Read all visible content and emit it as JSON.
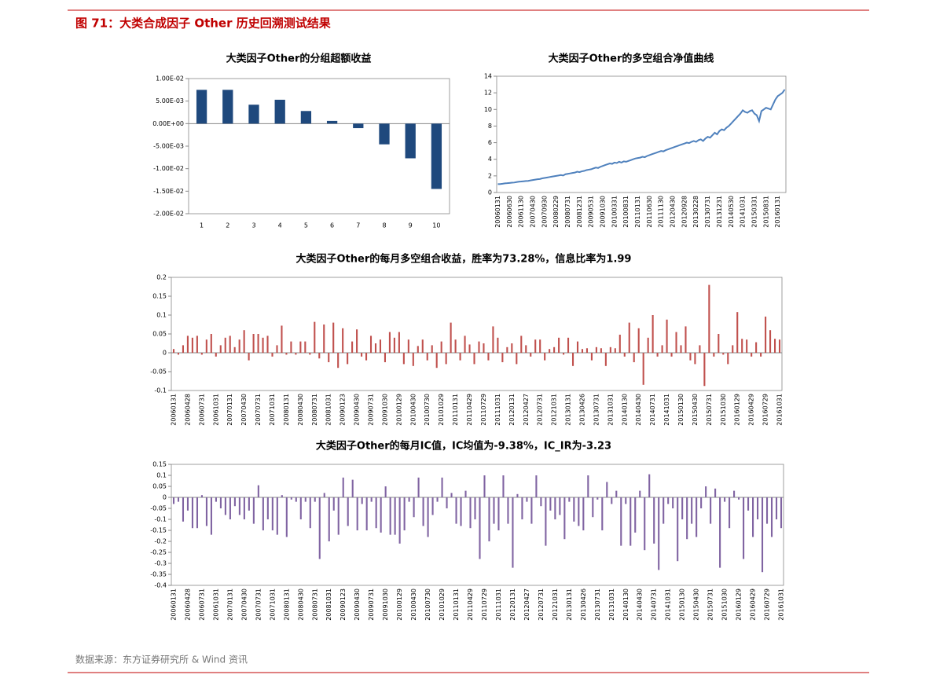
{
  "header": {
    "title": "图 71：大类合成因子 Other 历史回溯测试结果"
  },
  "source": "数据来源：东方证券研究所 & Wind 资讯",
  "chart_data": [
    {
      "type": "bar",
      "title": "大类因子Other的分组超额收益",
      "color": "#1f497d",
      "categories": [
        "1",
        "2",
        "3",
        "4",
        "5",
        "6",
        "7",
        "8",
        "9",
        "10"
      ],
      "values": [
        0.0075,
        0.0075,
        0.0042,
        0.0053,
        0.0028,
        0.0006,
        -0.001,
        -0.0046,
        -0.0077,
        -0.0145
      ],
      "ylim": [
        -0.02,
        0.01
      ],
      "yticks": [
        {
          "value": 0.01,
          "label": "1.00E-02"
        },
        {
          "value": 0.005,
          "label": "5.00E-03"
        },
        {
          "value": 0,
          "label": "0.00E+00"
        },
        {
          "value": -0.005,
          "label": "-5.00E-03"
        },
        {
          "value": -0.01,
          "label": "-1.00E-02"
        },
        {
          "value": -0.015,
          "label": "-1.50E-02"
        },
        {
          "value": -0.02,
          "label": "-2.00E-02"
        }
      ]
    },
    {
      "type": "line",
      "title": "大类因子Other的多空组合净值曲线",
      "color": "#4f81bd",
      "categories": [
        "20060131",
        null,
        null,
        null,
        null,
        "20060630",
        null,
        null,
        null,
        null,
        "20061130",
        null,
        null,
        null,
        null,
        "20070430",
        null,
        null,
        null,
        null,
        "20070930",
        null,
        null,
        null,
        null,
        "20080229",
        null,
        null,
        null,
        null,
        "20080731",
        null,
        null,
        null,
        null,
        "20081231",
        null,
        null,
        null,
        null,
        "20090531",
        null,
        null,
        null,
        null,
        "20091030",
        null,
        null,
        null,
        null,
        "20100331",
        null,
        null,
        null,
        null,
        "20100831",
        null,
        null,
        null,
        null,
        "20110131",
        null,
        null,
        null,
        null,
        "20110630",
        null,
        null,
        null,
        null,
        "20111130",
        null,
        null,
        null,
        null,
        "20120430",
        null,
        null,
        null,
        null,
        "20120928",
        null,
        null,
        null,
        null,
        "20130228",
        null,
        null,
        null,
        null,
        "20130731",
        null,
        null,
        null,
        null,
        "20131231",
        null,
        null,
        null,
        null,
        "20140530",
        null,
        null,
        null,
        null,
        "20141031",
        null,
        null,
        null,
        null,
        "20150331",
        null,
        null,
        null,
        null,
        "20150831",
        null,
        null,
        null,
        null,
        "20160131",
        null,
        null,
        null
      ],
      "values": [
        1.0,
        1.02,
        1.05,
        1.1,
        1.12,
        1.15,
        1.18,
        1.2,
        1.25,
        1.3,
        1.32,
        1.35,
        1.38,
        1.4,
        1.45,
        1.5,
        1.55,
        1.6,
        1.62,
        1.7,
        1.75,
        1.8,
        1.85,
        1.9,
        1.95,
        2.0,
        2.05,
        2.1,
        2.05,
        2.2,
        2.25,
        2.3,
        2.35,
        2.4,
        2.5,
        2.45,
        2.55,
        2.6,
        2.7,
        2.75,
        2.8,
        2.9,
        3.0,
        2.95,
        3.1,
        3.2,
        3.3,
        3.4,
        3.5,
        3.45,
        3.6,
        3.55,
        3.7,
        3.6,
        3.75,
        3.7,
        3.8,
        3.9,
        4.0,
        4.1,
        4.15,
        4.2,
        4.3,
        4.25,
        4.4,
        4.5,
        4.6,
        4.7,
        4.8,
        4.9,
        5.0,
        4.95,
        5.1,
        5.2,
        5.3,
        5.4,
        5.5,
        5.6,
        5.7,
        5.8,
        5.9,
        6.0,
        5.95,
        6.1,
        6.2,
        6.1,
        6.3,
        6.4,
        6.2,
        6.5,
        6.7,
        6.6,
        6.9,
        7.2,
        7.0,
        7.4,
        7.6,
        7.5,
        7.8,
        8.0,
        8.3,
        8.6,
        8.9,
        9.2,
        9.5,
        9.9,
        9.7,
        9.6,
        9.8,
        9.9,
        9.5,
        9.3,
        8.6,
        9.8,
        10.0,
        10.2,
        10.1,
        10.0,
        10.6,
        11.2,
        11.6,
        11.8,
        12.0,
        12.4
      ],
      "ylim": [
        0,
        14
      ],
      "yticks": [
        0,
        2,
        4,
        6,
        8,
        10,
        12,
        14
      ]
    },
    {
      "type": "bar",
      "title": "大类因子Other的每月多空组合收益，胜率为73.28%，信息比率为1.99",
      "color": "#c0504d",
      "categories": [
        "20060131",
        null,
        null,
        "20060428",
        null,
        null,
        "20060731",
        null,
        null,
        "20061031",
        null,
        null,
        "20070131",
        null,
        null,
        "20070430",
        null,
        null,
        "20070731",
        null,
        null,
        "20071031",
        null,
        null,
        "20080131",
        null,
        null,
        "20080430",
        null,
        null,
        "20080731",
        null,
        null,
        "20081031",
        null,
        null,
        "20090123",
        null,
        null,
        "20090430",
        null,
        null,
        "20090731",
        null,
        null,
        "20091030",
        null,
        null,
        "20100129",
        null,
        null,
        "20100430",
        null,
        null,
        "20100730",
        null,
        null,
        "20101029",
        null,
        null,
        "20110131",
        null,
        null,
        "20110429",
        null,
        null,
        "20110729",
        null,
        null,
        "20111031",
        null,
        null,
        "20120131",
        null,
        null,
        "20120427",
        null,
        null,
        "20120731",
        null,
        null,
        "20121031",
        null,
        null,
        "20130131",
        null,
        null,
        "20130426",
        null,
        null,
        "20130731",
        null,
        null,
        "20131031",
        null,
        null,
        "20140130",
        null,
        null,
        "20140430",
        null,
        null,
        "20140731",
        null,
        null,
        "20141031",
        null,
        null,
        "20150130",
        null,
        null,
        "20150430",
        null,
        null,
        "20150731",
        null,
        null,
        "20151030",
        null,
        null,
        "20160129",
        null,
        null,
        "20160429",
        null,
        null,
        "20160729",
        null,
        null,
        "20161031"
      ],
      "values": [
        0.01,
        -0.005,
        0.02,
        0.045,
        0.04,
        0.045,
        -0.005,
        0.035,
        0.05,
        -0.01,
        0.02,
        0.04,
        0.045,
        0.015,
        0.035,
        0.06,
        -0.02,
        0.05,
        0.05,
        0.04,
        0.045,
        -0.01,
        0.02,
        0.072,
        -0.005,
        0.03,
        -0.005,
        0.03,
        0.03,
        -0.005,
        0.082,
        -0.015,
        0.075,
        -0.025,
        0.08,
        -0.04,
        0.065,
        -0.03,
        0.03,
        0.062,
        -0.01,
        -0.02,
        0.045,
        0.025,
        0.035,
        -0.025,
        0.055,
        0.04,
        0.055,
        -0.03,
        0.035,
        -0.035,
        0.018,
        0.035,
        -0.02,
        0.02,
        -0.04,
        0.03,
        -0.03,
        0.08,
        0.035,
        -0.02,
        0.045,
        0.022,
        -0.03,
        0.03,
        0.025,
        -0.02,
        0.07,
        0.04,
        -0.025,
        0.015,
        0.025,
        -0.03,
        0.045,
        0.02,
        -0.01,
        0.035,
        0.035,
        -0.02,
        0.01,
        0.015,
        0.04,
        -0.005,
        0.04,
        -0.035,
        0.03,
        0.01,
        0.012,
        -0.02,
        0.015,
        0.012,
        -0.035,
        0.015,
        0.012,
        0.048,
        -0.01,
        0.08,
        -0.025,
        0.065,
        -0.085,
        0.04,
        0.1,
        -0.01,
        0.02,
        0.088,
        -0.01,
        0.055,
        0.02,
        0.07,
        -0.02,
        -0.03,
        0.02,
        -0.088,
        0.18,
        -0.01,
        0.05,
        -0.005,
        -0.03,
        0.02,
        0.108,
        0.037,
        0.035,
        -0.01,
        0.028,
        -0.01,
        0.096,
        0.06,
        0.037,
        0.035
      ],
      "ylim": [
        -0.1,
        0.2
      ],
      "yticks": [
        0.2,
        0.15,
        0.1,
        0.05,
        0,
        -0.05,
        -0.1
      ]
    },
    {
      "type": "bar",
      "title": "大类因子Other的每月IC值，IC均值为-9.38%，IC_IR为-3.23",
      "color": "#8064a2",
      "categories": [
        "20060131",
        null,
        null,
        "20060428",
        null,
        null,
        "20060731",
        null,
        null,
        "20061031",
        null,
        null,
        "20070131",
        null,
        null,
        "20070430",
        null,
        null,
        "20070731",
        null,
        null,
        "20071031",
        null,
        null,
        "20080131",
        null,
        null,
        "20080430",
        null,
        null,
        "20080731",
        null,
        null,
        "20081031",
        null,
        null,
        "20090123",
        null,
        null,
        "20090430",
        null,
        null,
        "20090731",
        null,
        null,
        "20091030",
        null,
        null,
        "20100129",
        null,
        null,
        "20100430",
        null,
        null,
        "20100730",
        null,
        null,
        "20101029",
        null,
        null,
        "20110131",
        null,
        null,
        "20110429",
        null,
        null,
        "20110729",
        null,
        null,
        "20111031",
        null,
        null,
        "20120131",
        null,
        null,
        "20120427",
        null,
        null,
        "20120731",
        null,
        null,
        "20121031",
        null,
        null,
        "20130131",
        null,
        null,
        "20130426",
        null,
        null,
        "20130731",
        null,
        null,
        "20131031",
        null,
        null,
        "20140130",
        null,
        null,
        "20140430",
        null,
        null,
        "20140731",
        null,
        null,
        "20141031",
        null,
        null,
        "20150130",
        null,
        null,
        "20150430",
        null,
        null,
        "20150731",
        null,
        null,
        "20151030",
        null,
        null,
        "20160129",
        null,
        null,
        "20160429",
        null,
        null,
        "20160729",
        null,
        null,
        "20161031"
      ],
      "values": [
        -0.03,
        -0.02,
        -0.11,
        -0.06,
        -0.14,
        -0.14,
        0.01,
        -0.13,
        -0.17,
        -0.02,
        -0.05,
        -0.08,
        -0.1,
        -0.04,
        -0.08,
        -0.1,
        -0.06,
        -0.12,
        0.055,
        -0.15,
        -0.1,
        -0.15,
        -0.17,
        0.01,
        -0.18,
        -0.01,
        -0.02,
        -0.1,
        -0.02,
        -0.14,
        -0.02,
        -0.28,
        0.02,
        -0.2,
        -0.06,
        -0.17,
        0.09,
        -0.13,
        0.08,
        -0.15,
        -0.03,
        -0.15,
        -0.02,
        -0.14,
        -0.16,
        0.05,
        -0.17,
        -0.17,
        -0.21,
        -0.15,
        -0.02,
        -0.09,
        0.09,
        -0.13,
        -0.18,
        -0.08,
        -0.02,
        0.09,
        -0.05,
        0.02,
        -0.12,
        -0.13,
        0.03,
        -0.14,
        -0.1,
        -0.28,
        0.1,
        -0.2,
        -0.12,
        -0.15,
        0.1,
        -0.12,
        -0.32,
        0.015,
        -0.1,
        -0.02,
        -0.12,
        0.1,
        -0.04,
        -0.22,
        -0.06,
        -0.1,
        -0.08,
        -0.19,
        -0.02,
        -0.11,
        -0.13,
        -0.15,
        0.1,
        -0.09,
        -0.01,
        -0.15,
        0.07,
        -0.03,
        0.03,
        -0.22,
        -0.03,
        -0.22,
        -0.16,
        0.03,
        -0.24,
        0.105,
        -0.21,
        -0.33,
        -0.12,
        -0.03,
        -0.05,
        -0.29,
        -0.1,
        -0.19,
        -0.12,
        -0.18,
        -0.05,
        0.05,
        -0.12,
        0.04,
        -0.32,
        -0.02,
        -0.14,
        0.03,
        -0.01,
        -0.28,
        -0.06,
        -0.18,
        -0.1,
        -0.34,
        -0.12,
        -0.18,
        -0.1,
        -0.14
      ],
      "ylim": [
        -0.4,
        0.15
      ],
      "yticks": [
        0.15,
        0.1,
        0.05,
        0,
        -0.05,
        -0.1,
        -0.15,
        -0.2,
        -0.25,
        -0.3,
        -0.35,
        -0.4
      ]
    }
  ]
}
